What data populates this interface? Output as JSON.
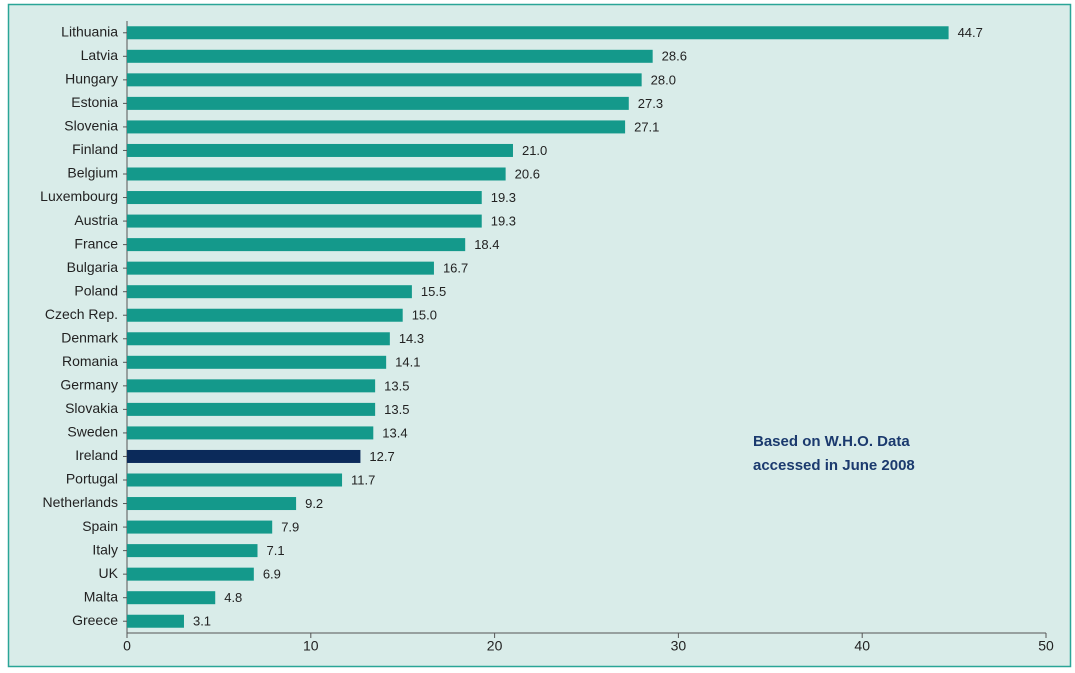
{
  "chart_data": {
    "type": "barh",
    "categories": [
      "Lithuania",
      "Latvia",
      "Hungary",
      "Estonia",
      "Slovenia",
      "Finland",
      "Belgium",
      "Luxembourg",
      "Austria",
      "France",
      "Bulgaria",
      "Poland",
      "Czech Rep.",
      "Denmark",
      "Romania",
      "Germany",
      "Slovakia",
      "Sweden",
      "Ireland",
      "Portugal",
      "Netherlands",
      "Spain",
      "Italy",
      "UK",
      "Malta",
      "Greece"
    ],
    "values": [
      44.7,
      28.6,
      28,
      27.3,
      27.1,
      21,
      20.6,
      19.3,
      19.3,
      18.4,
      16.7,
      15.5,
      15,
      14.3,
      14.1,
      13.5,
      13.5,
      13.4,
      12.7,
      11.7,
      9.2,
      7.9,
      7.1,
      6.9,
      4.8,
      3.1
    ],
    "value_labels": [
      "44.7",
      "28.6",
      "28.0",
      "27.3",
      "27.1",
      "21.0",
      "20.6",
      "19.3",
      "19.3",
      "18.4",
      "16.7",
      "15.5",
      "15.0",
      "14.3",
      "14.1",
      "13.5",
      "13.5",
      "13.4",
      "12.7",
      "11.7",
      "9.2",
      "7.9",
      "7.1",
      "6.9",
      "4.8",
      "3.1"
    ],
    "colors": [
      "#14998b",
      "#14998b",
      "#14998b",
      "#14998b",
      "#14998b",
      "#14998b",
      "#14998b",
      "#14998b",
      "#14998b",
      "#14998b",
      "#14998b",
      "#14998b",
      "#14998b",
      "#14998b",
      "#14998b",
      "#14998b",
      "#14998b",
      "#14998b",
      "#0b2a5a",
      "#14998b",
      "#14998b",
      "#14998b",
      "#14998b",
      "#14998b",
      "#14998b",
      "#14998b"
    ],
    "xlim": [
      0,
      50
    ],
    "xticks": [
      0,
      10,
      20,
      30,
      40,
      50
    ],
    "grid": false,
    "annotation": [
      "Based on W.H.O. Data",
      "accessed in June 2008"
    ]
  }
}
